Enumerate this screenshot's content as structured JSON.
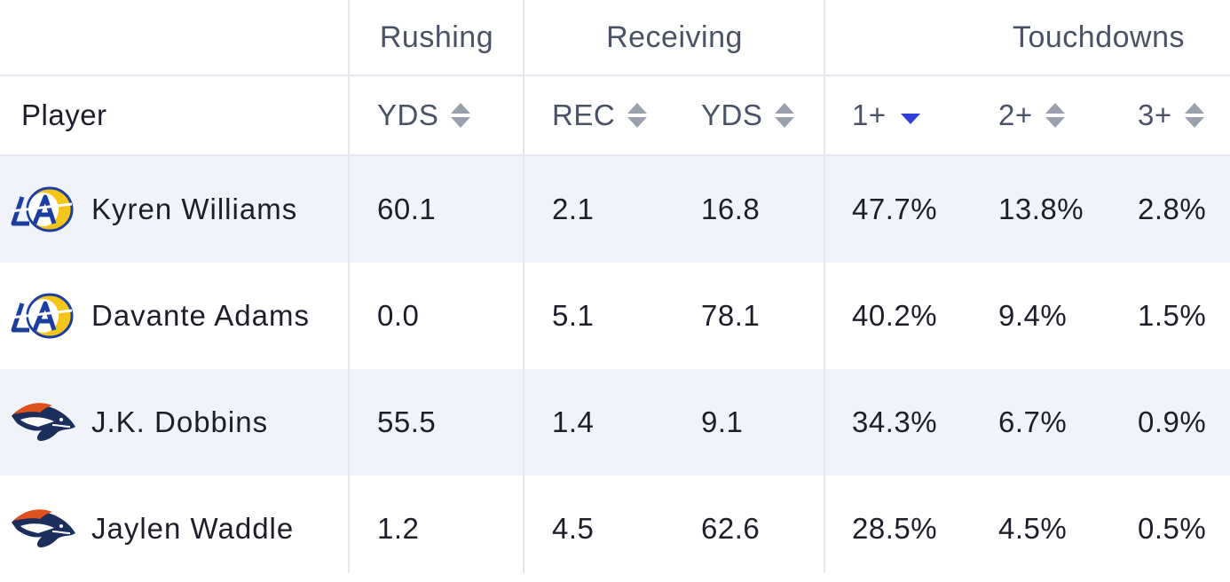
{
  "header": {
    "groups": {
      "rushing": "Rushing",
      "receiving": "Receiving",
      "touchdowns": "Touchdowns"
    },
    "columns": {
      "player": "Player",
      "rush_yds": "YDS",
      "rec": "REC",
      "rec_yds": "YDS",
      "td1": "1+",
      "td2": "2+",
      "td3": "3+"
    },
    "active_sort": "1+",
    "active_sort_direction": "descending"
  },
  "colors": {
    "accent": "#2f3fd6",
    "row_shade": "#f0f3f9",
    "divider": "#e3e7f1",
    "rams_blue": "#1b3fa0",
    "rams_gold": "#f5c518",
    "broncos_orange": "#e0501c",
    "broncos_navy": "#1c2f5c"
  },
  "rows": [
    {
      "player": "Kyren Williams",
      "team_icon": "rams-logo-icon",
      "rush_yds": "60.1",
      "rec": "2.1",
      "rec_yds": "16.8",
      "td1": "47.7%",
      "td2": "13.8%",
      "td3": "2.8%"
    },
    {
      "player": "Davante Adams",
      "team_icon": "rams-logo-icon",
      "rush_yds": "0.0",
      "rec": "5.1",
      "rec_yds": "78.1",
      "td1": "40.2%",
      "td2": "9.4%",
      "td3": "1.5%"
    },
    {
      "player": "J.K. Dobbins",
      "team_icon": "broncos-logo-icon",
      "rush_yds": "55.5",
      "rec": "1.4",
      "rec_yds": "9.1",
      "td1": "34.3%",
      "td2": "6.7%",
      "td3": "0.9%"
    },
    {
      "player": "Jaylen Waddle",
      "team_icon": "broncos-logo-icon",
      "rush_yds": "1.2",
      "rec": "4.5",
      "rec_yds": "62.6",
      "td1": "28.5%",
      "td2": "4.5%",
      "td3": "0.5%"
    }
  ]
}
